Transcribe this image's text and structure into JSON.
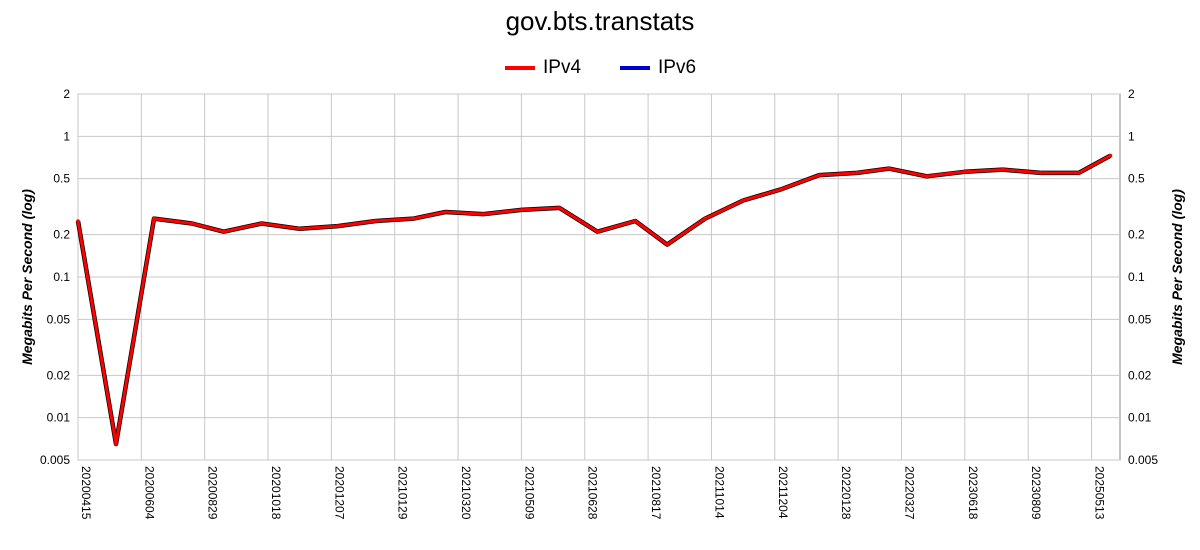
{
  "chart_data": {
    "type": "line",
    "title": "gov.bts.transtats",
    "ylabel": "Megabits Per Second (log)",
    "xlabel": "",
    "yscale": "log",
    "ylim": [
      0.005,
      2
    ],
    "y_ticks": [
      2,
      1,
      0.5,
      0.2,
      0.1,
      0.05,
      0.02,
      0.01,
      0.005
    ],
    "y_tick_labels": [
      "2",
      "1",
      "0.5",
      "0.2",
      "0.1",
      "0.05",
      "0.02",
      "0.01",
      "0.005"
    ],
    "x_tick_labels": [
      "20200415",
      "20200604",
      "20200829",
      "20201018",
      "20201207",
      "20210129",
      "20210320",
      "20210509",
      "20210628",
      "20210817",
      "20211014",
      "20211204",
      "20220128",
      "20220327",
      "20230618",
      "20230809",
      "20250513"
    ],
    "grid": true,
    "legend_position": "top-center",
    "series": [
      {
        "name": "IPv4",
        "color": "#ff0000",
        "x": [
          0,
          0.6,
          1.2,
          1.8,
          2.3,
          2.9,
          3.5,
          4.1,
          4.7,
          5.3,
          5.8,
          6.4,
          7.0,
          7.6,
          8.2,
          8.8,
          9.3,
          9.9,
          10.5,
          11.1,
          11.7,
          12.3,
          12.8,
          13.4,
          14.0,
          14.6,
          15.2,
          15.8,
          16.3
        ],
        "values": [
          0.25,
          0.0065,
          0.26,
          0.24,
          0.21,
          0.24,
          0.22,
          0.23,
          0.25,
          0.26,
          0.29,
          0.28,
          0.3,
          0.31,
          0.21,
          0.25,
          0.17,
          0.26,
          0.35,
          0.42,
          0.53,
          0.55,
          0.59,
          0.52,
          0.56,
          0.58,
          0.55,
          0.55,
          0.73
        ]
      },
      {
        "name": "IPv6",
        "color": "#0000cc",
        "x": [],
        "values": []
      }
    ]
  }
}
